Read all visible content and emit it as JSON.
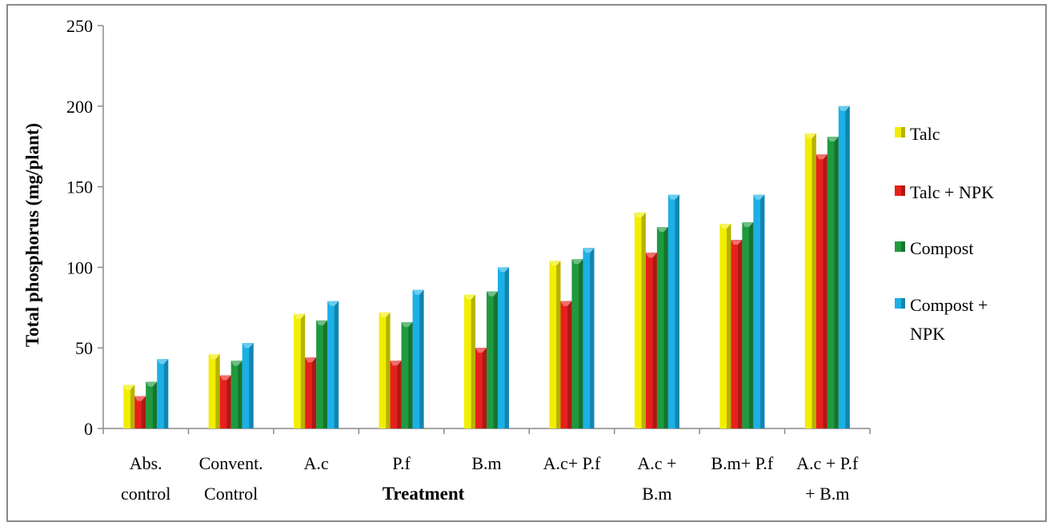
{
  "chart_data": {
    "type": "bar",
    "xlabel": "Treatment",
    "ylabel": "Total phosphorus (mg/plant)",
    "ylim": [
      0,
      250
    ],
    "yticks": [
      0,
      50,
      100,
      150,
      200,
      250
    ],
    "grid": false,
    "legend_position": "right",
    "categories": [
      [
        "Abs.",
        "control"
      ],
      [
        "Convent.",
        "Control"
      ],
      [
        "A.c"
      ],
      [
        "P.f"
      ],
      [
        "B.m"
      ],
      [
        "A.c+ P.f"
      ],
      [
        "A.c +",
        "B.m"
      ],
      [
        "B.m+ P.f"
      ],
      [
        "A.c + P.f",
        "+ B.m"
      ]
    ],
    "series": [
      {
        "name": "Talc",
        "legend_lines": [
          "Talc"
        ],
        "color": "#f2ee00",
        "values": [
          27,
          46,
          71,
          72,
          83,
          104,
          134,
          127,
          183
        ]
      },
      {
        "name": "Talc + NPK",
        "legend_lines": [
          "Talc + NPK"
        ],
        "color": "#e8201c",
        "values": [
          20,
          33,
          44,
          42,
          50,
          79,
          109,
          117,
          170
        ]
      },
      {
        "name": "Compost",
        "legend_lines": [
          "Compost"
        ],
        "color": "#1f9a3e",
        "values": [
          29,
          42,
          67,
          66,
          85,
          105,
          125,
          128,
          181
        ]
      },
      {
        "name": "Compost + NPK",
        "legend_lines": [
          "Compost +",
          "NPK"
        ],
        "color": "#1bb0e6",
        "values": [
          43,
          53,
          79,
          86,
          100,
          112,
          145,
          145,
          200
        ]
      }
    ]
  }
}
